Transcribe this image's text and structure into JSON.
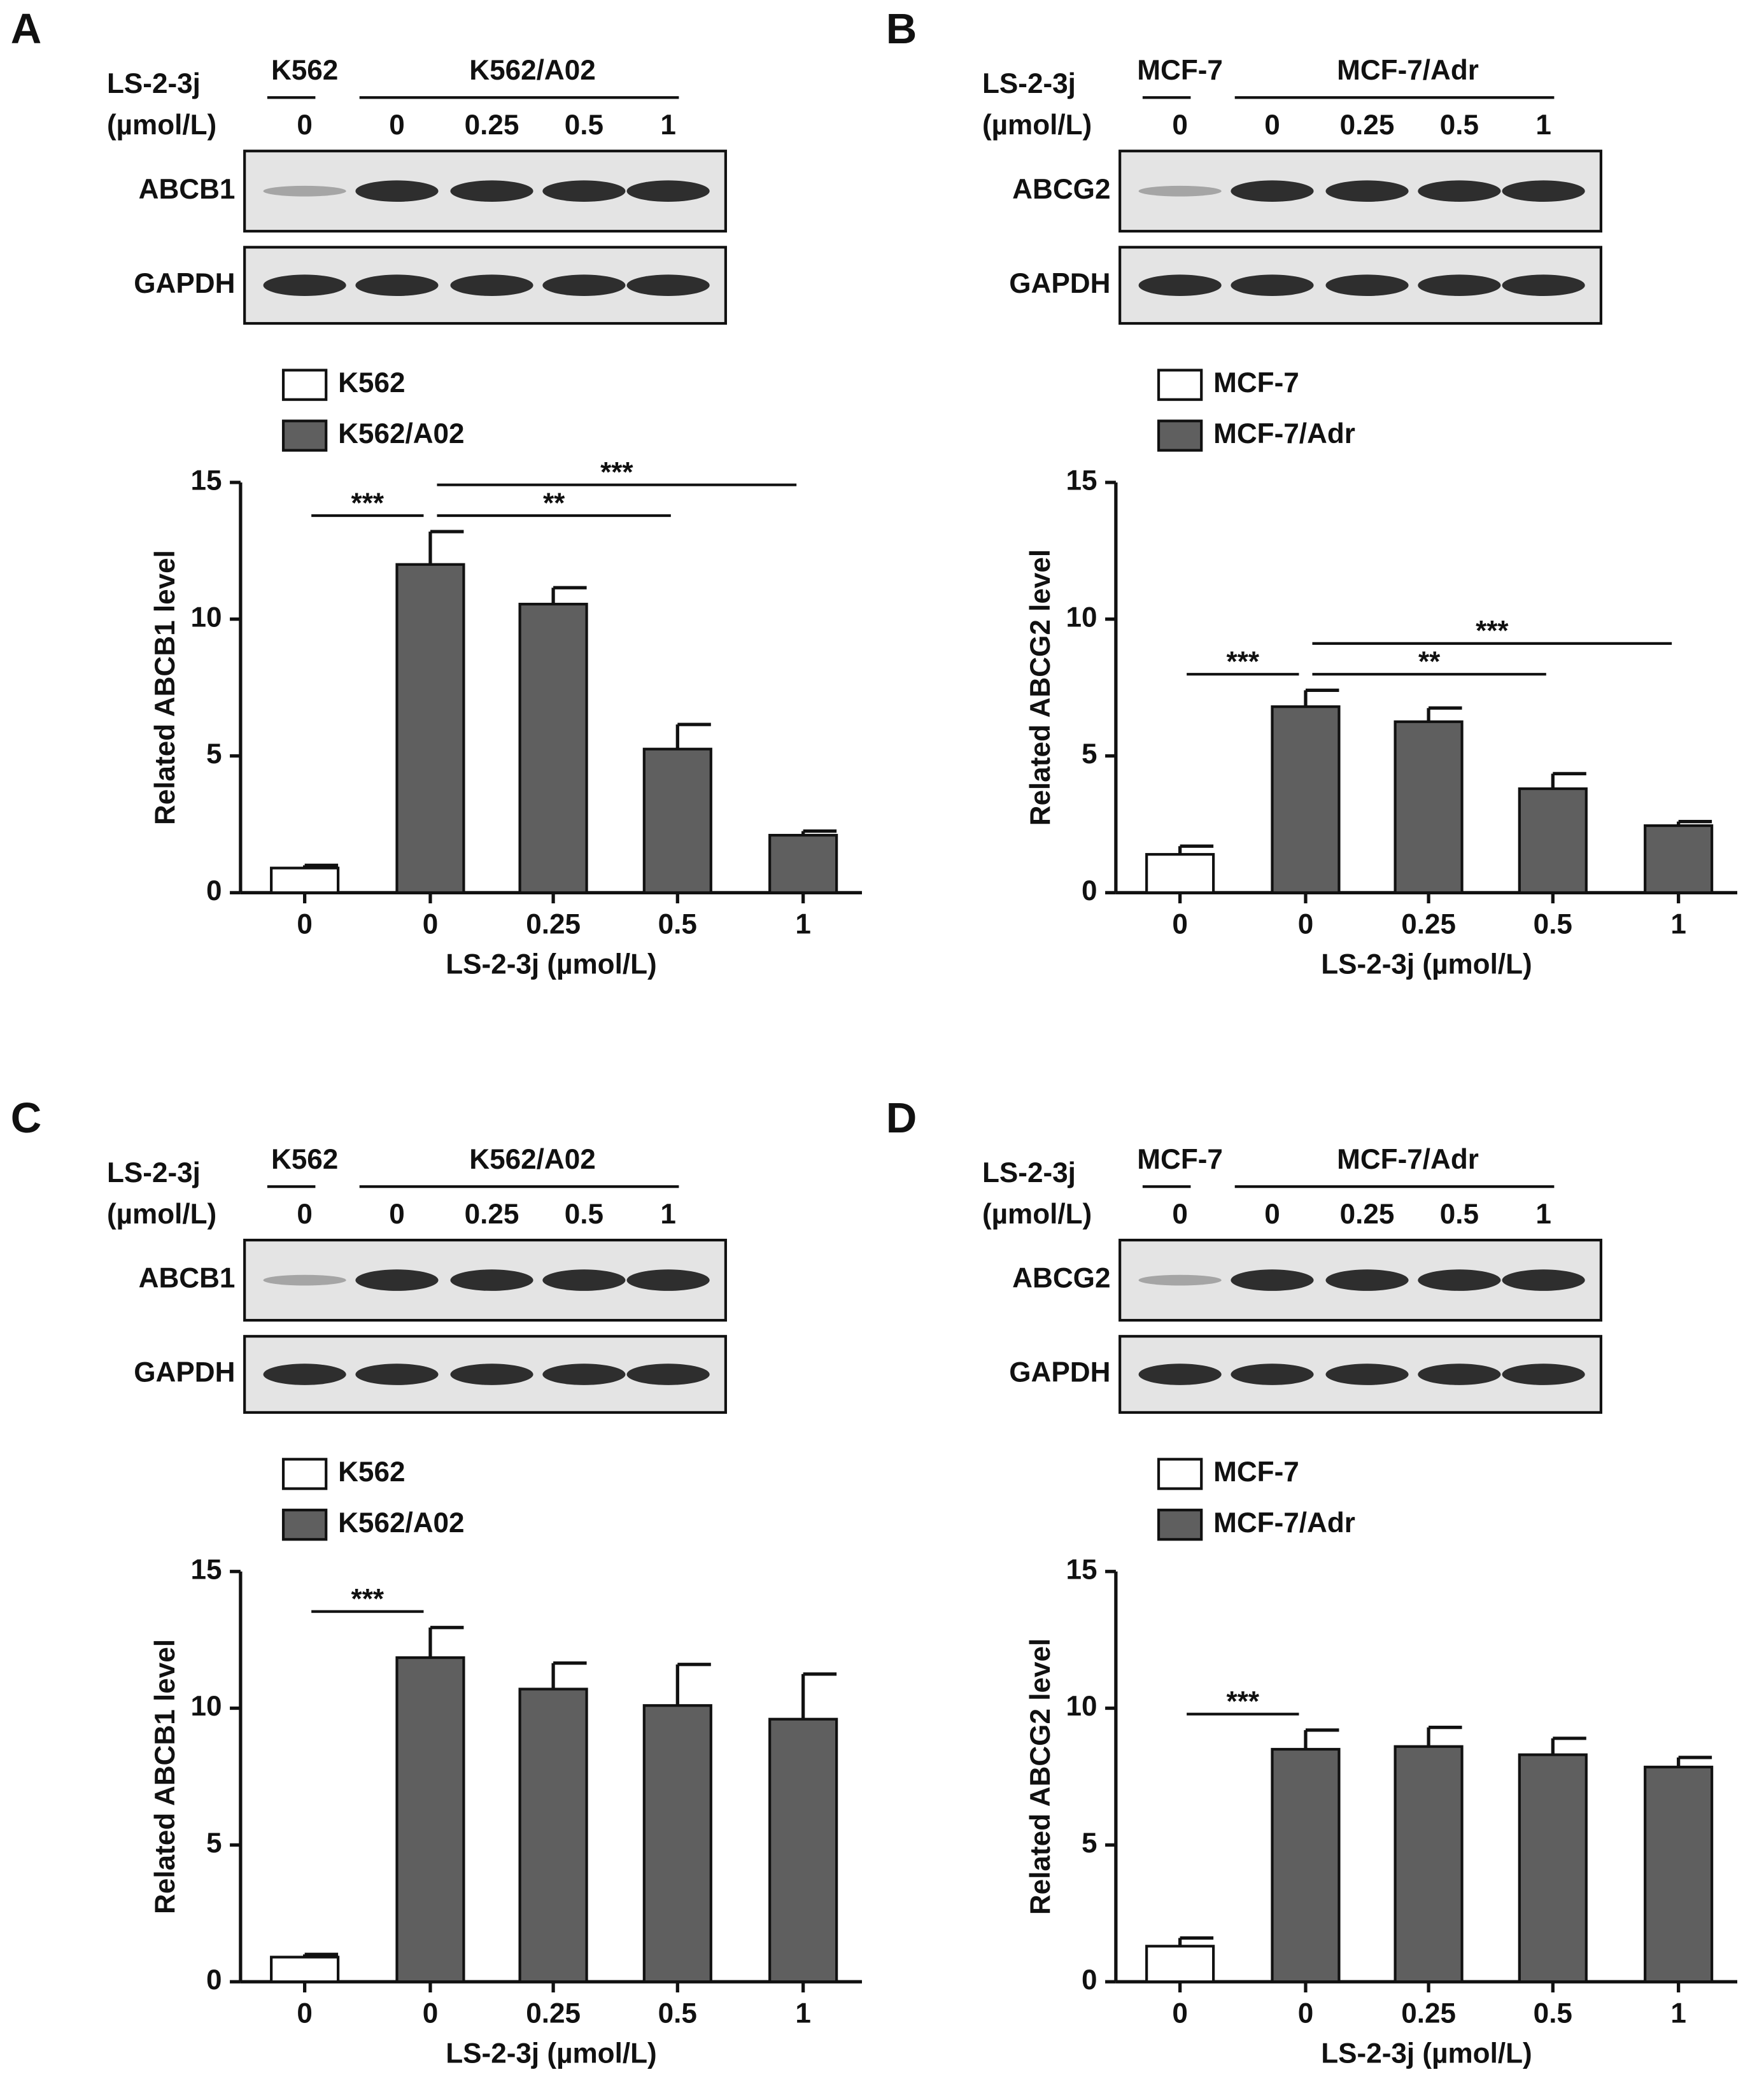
{
  "chart_data": [
    {
      "type": "bar",
      "panel": "A",
      "treatment_label": "LS-2-3j",
      "unit_label": "(µmol/L)",
      "blot_groups": [
        {
          "name": "K562",
          "doses": [
            "0"
          ]
        },
        {
          "name": "K562/A02",
          "doses": [
            "0",
            "0.25",
            "0.5",
            "1"
          ]
        }
      ],
      "blot_rows": [
        "ABCB1",
        "GAPDH"
      ],
      "categories": [
        "0",
        "0",
        "0.25",
        "0.5",
        "1"
      ],
      "series": [
        {
          "name": "K562",
          "color": "#ffffff",
          "values": [
            0.9,
            null,
            null,
            null,
            null
          ],
          "errors": [
            0.1,
            null,
            null,
            null,
            null
          ]
        },
        {
          "name": "K562/A02",
          "color": "#5f5f5f",
          "values": [
            null,
            12,
            10.55,
            5.25,
            2.1
          ],
          "errors": [
            null,
            1.2,
            0.6,
            0.9,
            0.15
          ]
        }
      ],
      "ylabel": "Related ABCB1 level",
      "xlabel": "LS-2-3j (µmol/L)",
      "ylim": [
        0,
        15
      ],
      "yticks": [
        0,
        5,
        10,
        15
      ],
      "significance": [
        {
          "between": [
            0,
            1
          ],
          "label": "***"
        },
        {
          "between": [
            1,
            3
          ],
          "label": "**"
        },
        {
          "between": [
            1,
            4
          ],
          "label": "***"
        }
      ]
    },
    {
      "type": "bar",
      "panel": "B",
      "treatment_label": "LS-2-3j",
      "unit_label": "(µmol/L)",
      "blot_groups": [
        {
          "name": "MCF-7",
          "doses": [
            "0"
          ]
        },
        {
          "name": "MCF-7/Adr",
          "doses": [
            "0",
            "0.25",
            "0.5",
            "1"
          ]
        }
      ],
      "blot_rows": [
        "ABCG2",
        "GAPDH"
      ],
      "categories": [
        "0",
        "0",
        "0.25",
        "0.5",
        "1"
      ],
      "series": [
        {
          "name": "MCF-7",
          "color": "#ffffff",
          "values": [
            1.4,
            null,
            null,
            null,
            null
          ],
          "errors": [
            0.3,
            null,
            null,
            null,
            null
          ]
        },
        {
          "name": "MCF-7/Adr",
          "color": "#5f5f5f",
          "values": [
            null,
            6.8,
            6.25,
            3.8,
            2.45
          ],
          "errors": [
            null,
            0.6,
            0.5,
            0.55,
            0.15
          ]
        }
      ],
      "ylabel": "Related ABCG2 level",
      "xlabel": "LS-2-3j (µmol/L)",
      "ylim": [
        0,
        15
      ],
      "yticks": [
        0,
        5,
        10,
        15
      ],
      "significance": [
        {
          "between": [
            0,
            1
          ],
          "label": "***"
        },
        {
          "between": [
            1,
            3
          ],
          "label": "**"
        },
        {
          "between": [
            1,
            4
          ],
          "label": "***"
        }
      ]
    },
    {
      "type": "bar",
      "panel": "C",
      "treatment_label": "LS-2-3j",
      "unit_label": "(µmol/L)",
      "blot_groups": [
        {
          "name": "K562",
          "doses": [
            "0"
          ]
        },
        {
          "name": "K562/A02",
          "doses": [
            "0",
            "0.25",
            "0.5",
            "1"
          ]
        }
      ],
      "blot_rows": [
        "ABCB1",
        "GAPDH"
      ],
      "categories": [
        "0",
        "0",
        "0.25",
        "0.5",
        "1"
      ],
      "series": [
        {
          "name": "K562",
          "color": "#ffffff",
          "values": [
            0.9,
            null,
            null,
            null,
            null
          ],
          "errors": [
            0.1,
            null,
            null,
            null,
            null
          ]
        },
        {
          "name": "K562/A02",
          "color": "#5f5f5f",
          "values": [
            null,
            11.85,
            10.7,
            10.1,
            9.6
          ],
          "errors": [
            null,
            1.1,
            0.95,
            1.5,
            1.65
          ]
        }
      ],
      "ylabel": "Related ABCB1 level",
      "xlabel": "LS-2-3j (µmol/L)",
      "ylim": [
        0,
        15
      ],
      "yticks": [
        0,
        5,
        10,
        15
      ],
      "significance": [
        {
          "between": [
            0,
            1
          ],
          "label": "***"
        }
      ]
    },
    {
      "type": "bar",
      "panel": "D",
      "treatment_label": "LS-2-3j",
      "unit_label": "(µmol/L)",
      "blot_groups": [
        {
          "name": "MCF-7",
          "doses": [
            "0"
          ]
        },
        {
          "name": "MCF-7/Adr",
          "doses": [
            "0",
            "0.25",
            "0.5",
            "1"
          ]
        }
      ],
      "blot_rows": [
        "ABCG2",
        "GAPDH"
      ],
      "categories": [
        "0",
        "0",
        "0.25",
        "0.5",
        "1"
      ],
      "series": [
        {
          "name": "MCF-7",
          "color": "#ffffff",
          "values": [
            1.3,
            null,
            null,
            null,
            null
          ],
          "errors": [
            0.3,
            null,
            null,
            null,
            null
          ]
        },
        {
          "name": "MCF-7/Adr",
          "color": "#5f5f5f",
          "values": [
            null,
            8.5,
            8.6,
            8.3,
            7.85
          ],
          "errors": [
            null,
            0.7,
            0.7,
            0.6,
            0.35
          ]
        }
      ],
      "ylabel": "Related ABCG2 level",
      "xlabel": "LS-2-3j (µmol/L)",
      "ylim": [
        0,
        15
      ],
      "yticks": [
        0,
        5,
        10,
        15
      ],
      "significance": [
        {
          "between": [
            0,
            1
          ],
          "label": "***"
        }
      ]
    }
  ]
}
